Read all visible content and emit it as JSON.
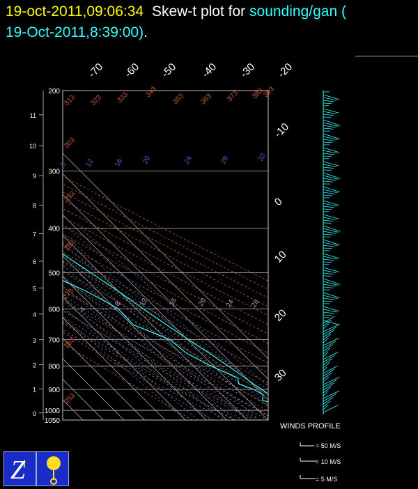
{
  "header": {
    "datetime": "19-oct-2011,09:06:34",
    "title_text": "Skew-t plot for",
    "station": "sounding/gan (",
    "obs_time": "19-Oct-2011,8:39:00)",
    "period": "."
  },
  "colors": {
    "date": "#ffff00",
    "title": "#ffffff",
    "station": "#33ffff",
    "trace": "#33ffff",
    "isotherm": "#bbbbbb",
    "dry_adiabat": "#cc5533",
    "mixing_ratio": "#4466cc",
    "moist_adiabat": "#aaaaaa",
    "pressure_line": "#bbbbbb"
  },
  "wind_profile": {
    "label": "WINDS PROFILE",
    "keys": [
      "= 50 M/S",
      "= 10 M/S",
      "= 5 M/S"
    ]
  },
  "logos": [
    "zeno-logo-icon",
    "weather-sensor-icon"
  ],
  "chart_data": {
    "type": "line",
    "title": "Skew-t plot for sounding/gan ( 19-Oct-2011,8:39:00).",
    "pressure_levels": [
      200,
      300,
      400,
      500,
      600,
      700,
      800,
      900,
      1000,
      1050
    ],
    "pressure_tick_labels": [
      "200",
      "300",
      "400",
      "500",
      "600",
      "700",
      "800",
      "900",
      "1000",
      "1050"
    ],
    "height_km_ticks": [
      "0",
      "1",
      "2",
      "3",
      "4",
      "5",
      "6",
      "7",
      "8",
      "9",
      "10",
      "11"
    ],
    "temperature_ticks": [
      "-70",
      "-60",
      "-50",
      "-40",
      "-30",
      "-20",
      "-10",
      "0",
      "10",
      "20",
      "30"
    ],
    "dry_adiabat_labels": [
      "313",
      "323",
      "333",
      "343",
      "353",
      "363",
      "373",
      "383",
      "393",
      "303",
      "293",
      "283",
      "273",
      "263",
      "253"
    ],
    "mixing_ratio_labels": [
      "8",
      "12",
      "16",
      "20",
      "24",
      "28",
      "32"
    ],
    "moist_adiabat_labels": [
      "4",
      "8",
      "12",
      "16",
      "20",
      "24",
      "28"
    ],
    "series": [
      {
        "id": "temperature",
        "pressure": [
          1000,
          975,
          950,
          925,
          900,
          875,
          850,
          800,
          750,
          700,
          650,
          600,
          550,
          500,
          450,
          400,
          350,
          300,
          250,
          200
        ],
        "temp_c": [
          26.5,
          25,
          24.3,
          23,
          22,
          20.5,
          19.4,
          17,
          14,
          10.5,
          7,
          3.5,
          0,
          -4.5,
          -9.5,
          -15,
          -22.5,
          -31.5,
          -42,
          -54.5
        ]
      },
      {
        "id": "dewpoint",
        "pressure": [
          1000,
          975,
          950,
          925,
          900,
          875,
          850,
          800,
          750,
          700,
          650,
          600,
          550,
          500,
          450,
          400,
          350,
          300,
          250,
          200
        ],
        "temp_c": [
          22,
          20.5,
          19.5,
          18.5,
          17.5,
          15.5,
          13.5,
          9.5,
          4,
          -1,
          -7,
          -9,
          -17,
          -24,
          -31,
          -33,
          -45,
          -52,
          -62,
          -70
        ]
      }
    ],
    "xlim_c": [
      -70,
      30
    ],
    "ylim_hpa": [
      1050,
      200
    ],
    "log_pressure": true,
    "skew": "45deg",
    "grid": true
  }
}
